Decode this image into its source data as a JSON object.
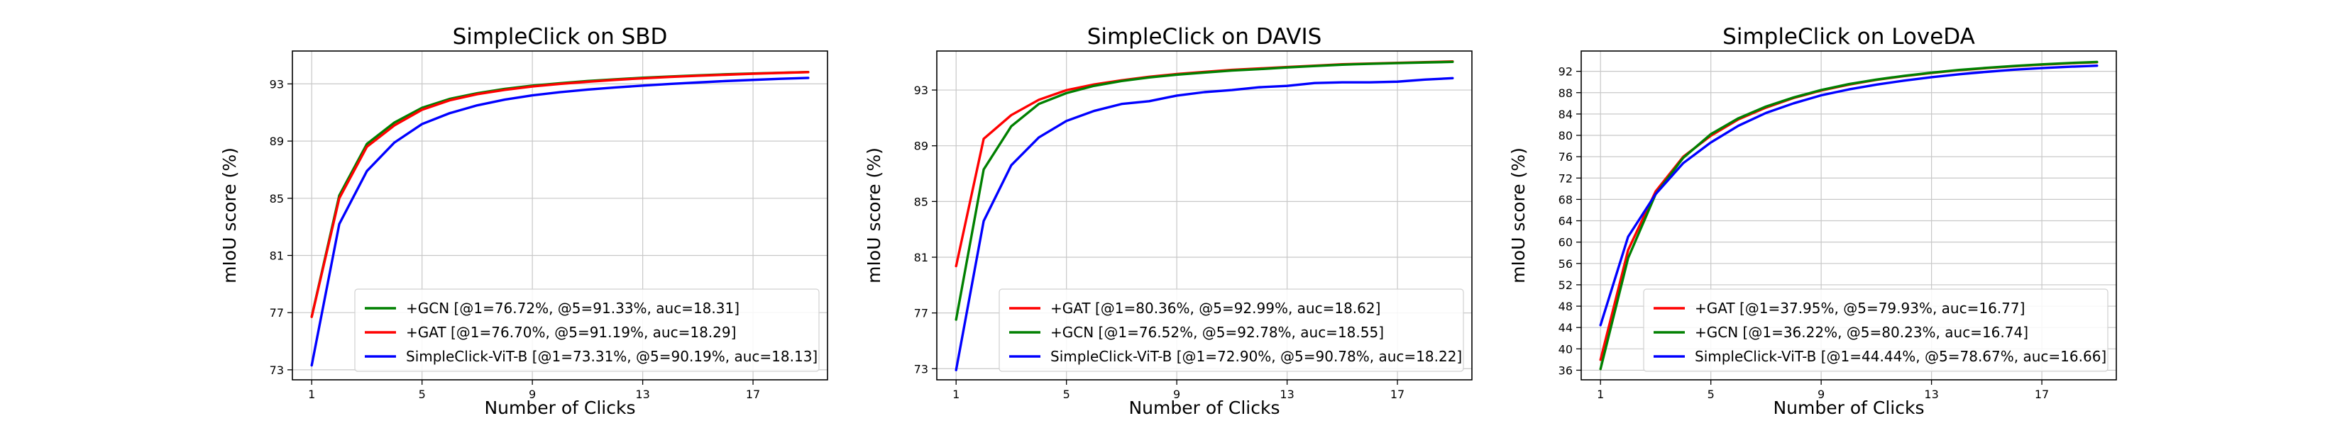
{
  "chart_data": [
    {
      "type": "line",
      "title": "SimpleClick on SBD",
      "xlabel": "Number of Clicks",
      "ylabel": "mIoU score (%)",
      "xlim": [
        0.3,
        19.7
      ],
      "ylim": [
        72.3,
        95.3
      ],
      "xticks": [
        1,
        5,
        9,
        13,
        17
      ],
      "yticks": [
        73,
        77,
        81,
        85,
        89,
        93
      ],
      "grid": true,
      "legend_position": "lower-right",
      "x": [
        1,
        2,
        3,
        4,
        5,
        6,
        7,
        8,
        9,
        10,
        11,
        12,
        13,
        14,
        15,
        16,
        17,
        18,
        19
      ],
      "series": [
        {
          "name": "+GCN [@1=76.72%, @5=91.33%, auc=18.31]",
          "color": "#008000",
          "values": [
            76.72,
            85.2,
            88.8,
            90.3,
            91.33,
            91.95,
            92.35,
            92.65,
            92.88,
            93.05,
            93.2,
            93.32,
            93.43,
            93.52,
            93.6,
            93.67,
            93.73,
            93.78,
            93.83
          ]
        },
        {
          "name": "+GAT [@1=76.70%, @5=91.19%, auc=18.29]",
          "color": "#ff0000",
          "values": [
            76.7,
            85.0,
            88.6,
            90.1,
            91.19,
            91.85,
            92.28,
            92.58,
            92.82,
            93.0,
            93.15,
            93.28,
            93.39,
            93.49,
            93.57,
            93.64,
            93.71,
            93.77,
            93.82
          ]
        },
        {
          "name": "SimpleClick-ViT-B [@1=73.31%, @5=90.19%, auc=18.13]",
          "color": "#0000ff",
          "values": [
            73.31,
            83.2,
            86.9,
            88.9,
            90.19,
            90.95,
            91.5,
            91.9,
            92.2,
            92.42,
            92.6,
            92.75,
            92.88,
            93.0,
            93.1,
            93.2,
            93.28,
            93.36,
            93.42
          ]
        }
      ]
    },
    {
      "type": "line",
      "title": "SimpleClick on DAVIS",
      "xlabel": "Number of Clicks",
      "ylabel": "mIoU score (%)",
      "xlim": [
        0.3,
        19.7
      ],
      "ylim": [
        72.2,
        95.8
      ],
      "xticks": [
        1,
        5,
        9,
        13,
        17
      ],
      "yticks": [
        73,
        77,
        81,
        85,
        89,
        93
      ],
      "grid": true,
      "legend_position": "lower-right",
      "x": [
        1,
        2,
        3,
        4,
        5,
        6,
        7,
        8,
        9,
        10,
        11,
        12,
        13,
        14,
        15,
        16,
        17,
        18,
        19
      ],
      "series": [
        {
          "name": "+GAT [@1=80.36%, @5=92.99%, auc=18.62]",
          "color": "#ff0000",
          "values": [
            80.36,
            89.5,
            91.2,
            92.3,
            92.99,
            93.4,
            93.7,
            93.95,
            94.15,
            94.3,
            94.45,
            94.55,
            94.65,
            94.75,
            94.85,
            94.9,
            94.95,
            95.0,
            95.05
          ]
        },
        {
          "name": "+GCN [@1=76.52%, @5=92.78%, auc=18.55]",
          "color": "#008000",
          "values": [
            76.52,
            87.3,
            90.4,
            92.0,
            92.78,
            93.3,
            93.65,
            93.9,
            94.1,
            94.25,
            94.4,
            94.5,
            94.62,
            94.72,
            94.82,
            94.88,
            94.93,
            94.98,
            95.02
          ]
        },
        {
          "name": "SimpleClick-ViT-B [@1=72.90%, @5=90.78%, auc=18.22]",
          "color": "#0000ff",
          "values": [
            72.9,
            83.6,
            87.6,
            89.6,
            90.78,
            91.5,
            92.0,
            92.2,
            92.6,
            92.85,
            93.0,
            93.2,
            93.3,
            93.5,
            93.55,
            93.55,
            93.6,
            93.75,
            93.85
          ]
        }
      ]
    },
    {
      "type": "line",
      "title": "SimpleClick on LoveDA",
      "xlabel": "Number of Clicks",
      "ylabel": "mIoU score (%)",
      "xlim": [
        0.3,
        19.7
      ],
      "ylim": [
        34.2,
        95.8
      ],
      "xticks": [
        1,
        5,
        9,
        13,
        17
      ],
      "yticks": [
        36,
        40,
        44,
        48,
        52,
        56,
        60,
        64,
        68,
        72,
        76,
        80,
        84,
        88,
        92
      ],
      "grid": true,
      "legend_position": "lower-right",
      "x": [
        1,
        2,
        3,
        4,
        5,
        6,
        7,
        8,
        9,
        10,
        11,
        12,
        13,
        14,
        15,
        16,
        17,
        18,
        19
      ],
      "series": [
        {
          "name": "+GAT [@1=37.95%, @5=79.93%, auc=16.77]",
          "color": "#ff0000",
          "values": [
            37.95,
            58.5,
            69.5,
            76.0,
            79.93,
            83.0,
            85.2,
            87.0,
            88.4,
            89.5,
            90.4,
            91.1,
            91.7,
            92.2,
            92.6,
            92.95,
            93.25,
            93.5,
            93.7
          ]
        },
        {
          "name": "+GCN [@1=36.22%, @5=80.23%, auc=16.74]",
          "color": "#008000",
          "values": [
            36.22,
            57.0,
            69.0,
            75.8,
            80.23,
            83.2,
            85.4,
            87.1,
            88.5,
            89.6,
            90.45,
            91.15,
            91.75,
            92.25,
            92.65,
            93.0,
            93.3,
            93.55,
            93.75
          ]
        },
        {
          "name": "SimpleClick-ViT-B [@1=44.44%, @5=78.67%, auc=16.66]",
          "color": "#0000ff",
          "values": [
            44.44,
            61.0,
            69.0,
            74.8,
            78.67,
            81.8,
            84.2,
            86.0,
            87.5,
            88.6,
            89.5,
            90.25,
            90.9,
            91.45,
            91.9,
            92.3,
            92.6,
            92.85,
            93.05
          ]
        }
      ]
    }
  ]
}
